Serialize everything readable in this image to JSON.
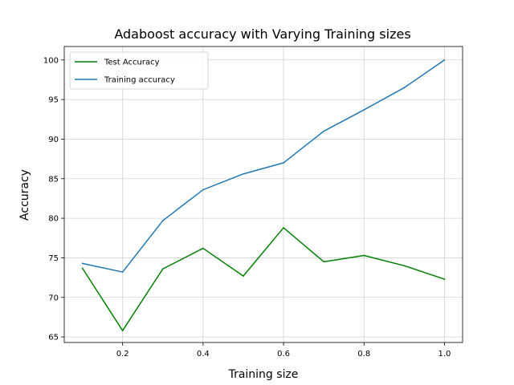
{
  "chart_data": {
    "type": "line",
    "title": "Adaboost accuracy with Varying Training sizes",
    "xlabel": "Training size",
    "ylabel": "Accuracy",
    "xlim": [
      0.055,
      1.045
    ],
    "ylim": [
      64.3,
      101.7
    ],
    "xticks": [
      0.2,
      0.4,
      0.6,
      0.8,
      1.0
    ],
    "xtick_labels": [
      "0.2",
      "0.4",
      "0.6",
      "0.8",
      "1.0"
    ],
    "yticks": [
      65,
      70,
      75,
      80,
      85,
      90,
      95,
      100
    ],
    "ytick_labels": [
      "65",
      "70",
      "75",
      "80",
      "85",
      "90",
      "95",
      "100"
    ],
    "grid": true,
    "legend_position": "top-left",
    "x": [
      0.1,
      0.2,
      0.3,
      0.4,
      0.5,
      0.6,
      0.7,
      0.8,
      0.9,
      1.0
    ],
    "series": [
      {
        "name": "Test Accuracy",
        "color": "#008000",
        "values": [
          73.7,
          65.8,
          73.6,
          76.2,
          72.7,
          78.8,
          74.5,
          75.3,
          74.0,
          72.3
        ]
      },
      {
        "name": "Training accuracy",
        "color": "#1f77b4",
        "values": [
          74.3,
          73.2,
          79.7,
          83.6,
          85.6,
          87.0,
          91.0,
          93.7,
          96.5,
          100.0
        ]
      }
    ]
  }
}
